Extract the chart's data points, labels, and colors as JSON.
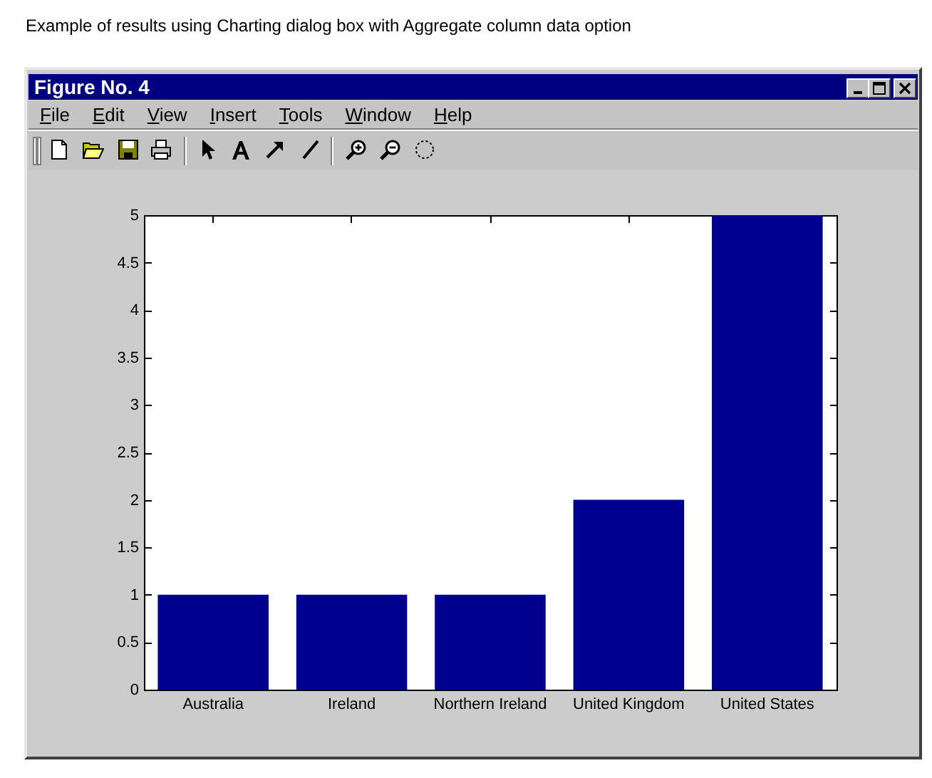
{
  "chart_data": {
    "type": "bar",
    "title": "Example of results using Charting dialog box with Aggregate column data option",
    "annotations": [
      "Figure No. 4",
      "File",
      "Edit",
      "View",
      "Insert",
      "Tools",
      "Window",
      "Help"
    ],
    "categories": [
      "Australia",
      "Ireland",
      "Northern Ireland",
      "United Kingdom",
      "United States"
    ],
    "values": [
      1,
      1,
      1,
      2,
      5
    ],
    "color": "#00008f",
    "ylim": [
      0,
      5
    ],
    "yticks": [
      0,
      0.5,
      1,
      1.5,
      2,
      2.5,
      3,
      3.5,
      4,
      4.5,
      5
    ]
  }
}
